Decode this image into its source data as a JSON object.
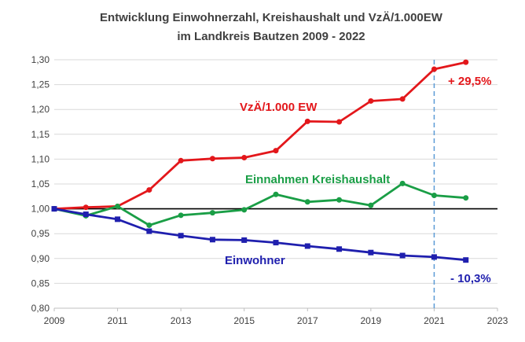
{
  "chart_data": {
    "type": "line",
    "title_line1": "Entwicklung Einwohnerzahl, Kreishaushalt und VzÄ/1.000EW",
    "title_line2": "im Landkreis Bautzen 2009 - 2022",
    "xlim": [
      2009,
      2023
    ],
    "ylim": [
      0.8,
      1.3
    ],
    "x_ticks": [
      "2009",
      "2011",
      "2013",
      "2015",
      "2017",
      "2019",
      "2021",
      "2023"
    ],
    "y_ticks": [
      "0,80",
      "0,85",
      "0,90",
      "0,95",
      "1,00",
      "1,05",
      "1,10",
      "1,15",
      "1,20",
      "1,25",
      "1,30"
    ],
    "grid": "horizontal",
    "reference_line": 1.0,
    "marker_year": 2021,
    "series": [
      {
        "name": "VzÄ/1.000 EW",
        "color": "#e3171b",
        "marker": "circle",
        "x": [
          2009,
          2010,
          2011,
          2012,
          2013,
          2014,
          2015,
          2016,
          2017,
          2018,
          2019,
          2020,
          2021,
          2022
        ],
        "values": [
          1.0,
          1.003,
          1.005,
          1.038,
          1.097,
          1.101,
          1.103,
          1.117,
          1.176,
          1.175,
          1.217,
          1.221,
          1.281,
          1.295
        ]
      },
      {
        "name": "Einnahmen Kreishaushalt",
        "color": "#1a9e46",
        "marker": "circle",
        "x": [
          2009,
          2010,
          2011,
          2012,
          2013,
          2014,
          2015,
          2016,
          2017,
          2018,
          2019,
          2020,
          2021,
          2022
        ],
        "values": [
          1.0,
          0.986,
          1.005,
          0.967,
          0.987,
          0.992,
          0.998,
          1.029,
          1.014,
          1.018,
          1.007,
          1.051,
          1.027,
          1.022
        ]
      },
      {
        "name": "Einwohner",
        "color": "#1f1fae",
        "marker": "square",
        "x": [
          2009,
          2010,
          2011,
          2012,
          2013,
          2014,
          2015,
          2016,
          2017,
          2018,
          2019,
          2020,
          2021,
          2022
        ],
        "values": [
          1.0,
          0.989,
          0.979,
          0.955,
          0.946,
          0.938,
          0.937,
          0.932,
          0.925,
          0.919,
          0.912,
          0.906,
          0.903,
          0.897
        ]
      }
    ],
    "annotations": [
      {
        "text": "+ 29,5%",
        "color": "#e3171b"
      },
      {
        "text": "- 10,3%",
        "color": "#1f1fae"
      }
    ]
  }
}
